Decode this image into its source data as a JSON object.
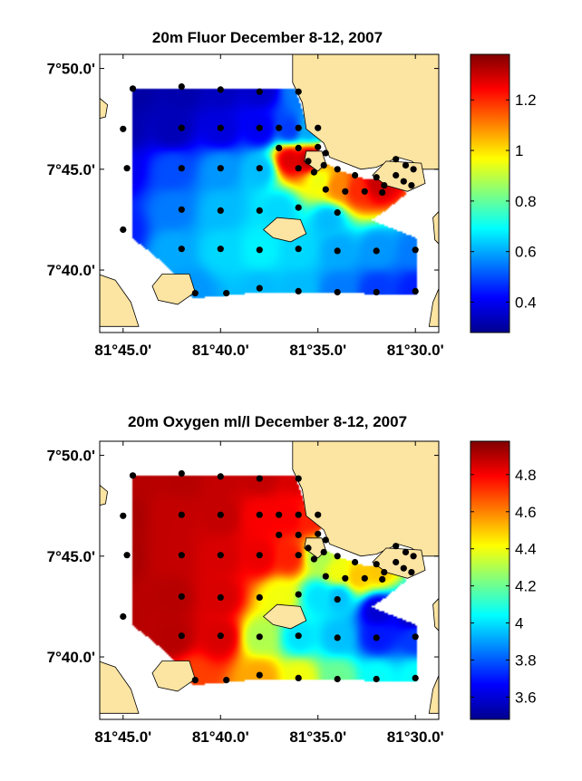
{
  "chart_data": [
    {
      "type": "heatmap",
      "title": "20m Fluor December 8-12, 2007",
      "x_ticks": [
        "81°45.0'",
        "81°40.0'",
        "81°35.0'",
        "81°30.0'"
      ],
      "y_ticks": [
        "7°50.0'",
        "7°45.0'",
        "7°40.0'"
      ],
      "xlim_min_west": [
        46.2,
        28.8
      ],
      "ylim_min_north": [
        36.9,
        50.7
      ],
      "colorbar": {
        "range": [
          0.28,
          1.38
        ],
        "ticks": [
          0.4,
          0.6,
          0.8,
          1,
          1.2
        ],
        "tick_labels": [
          "0.4",
          "0.6",
          "0.8",
          "1",
          "1.2"
        ]
      },
      "field": [
        {
          "lon": 44.5,
          "lat": 49.0,
          "v": 0.32
        },
        {
          "lon": 42.0,
          "lat": 49.0,
          "v": 0.33
        },
        {
          "lon": 40.0,
          "lat": 49.0,
          "v": 0.35
        },
        {
          "lon": 38.0,
          "lat": 49.0,
          "v": 0.36
        },
        {
          "lon": 36.0,
          "lat": 49.0,
          "v": 0.55
        },
        {
          "lon": 45.0,
          "lat": 47.0,
          "v": 0.33
        },
        {
          "lon": 42.5,
          "lat": 47.0,
          "v": 0.34
        },
        {
          "lon": 40.0,
          "lat": 47.0,
          "v": 0.38
        },
        {
          "lon": 38.0,
          "lat": 47.0,
          "v": 0.4
        },
        {
          "lon": 36.5,
          "lat": 47.0,
          "v": 0.48
        },
        {
          "lon": 35.5,
          "lat": 47.0,
          "v": 0.6
        },
        {
          "lon": 45.0,
          "lat": 45.0,
          "v": 0.4
        },
        {
          "lon": 42.5,
          "lat": 45.0,
          "v": 0.5
        },
        {
          "lon": 40.0,
          "lat": 45.0,
          "v": 0.58
        },
        {
          "lon": 38.0,
          "lat": 45.0,
          "v": 0.62
        },
        {
          "lon": 36.5,
          "lat": 45.5,
          "v": 1.28
        },
        {
          "lon": 35.5,
          "lat": 45.5,
          "v": 1.32
        },
        {
          "lon": 35.0,
          "lat": 44.5,
          "v": 0.95
        },
        {
          "lon": 34.0,
          "lat": 44.2,
          "v": 1.1
        },
        {
          "lon": 33.0,
          "lat": 44.0,
          "v": 1.2
        },
        {
          "lon": 32.0,
          "lat": 44.3,
          "v": 1.3
        },
        {
          "lon": 45.0,
          "lat": 42.0,
          "v": 0.45
        },
        {
          "lon": 42.5,
          "lat": 43.0,
          "v": 0.55
        },
        {
          "lon": 40.0,
          "lat": 43.0,
          "v": 0.62
        },
        {
          "lon": 37.0,
          "lat": 43.0,
          "v": 0.65
        },
        {
          "lon": 34.5,
          "lat": 42.5,
          "v": 0.62
        },
        {
          "lon": 42.5,
          "lat": 41.0,
          "v": 0.6
        },
        {
          "lon": 40.0,
          "lat": 41.0,
          "v": 0.65
        },
        {
          "lon": 38.0,
          "lat": 41.0,
          "v": 0.68
        },
        {
          "lon": 36.0,
          "lat": 41.0,
          "v": 0.65
        },
        {
          "lon": 34.0,
          "lat": 41.0,
          "v": 0.6
        },
        {
          "lon": 32.0,
          "lat": 41.0,
          "v": 0.58
        },
        {
          "lon": 30.0,
          "lat": 41.0,
          "v": 0.55
        },
        {
          "lon": 41.5,
          "lat": 39.0,
          "v": 0.58
        },
        {
          "lon": 38.0,
          "lat": 39.0,
          "v": 0.62
        },
        {
          "lon": 36.0,
          "lat": 39.0,
          "v": 0.62
        },
        {
          "lon": 34.0,
          "lat": 39.0,
          "v": 0.55
        },
        {
          "lon": 32.0,
          "lat": 39.0,
          "v": 0.48
        },
        {
          "lon": 30.0,
          "lat": 39.0,
          "v": 0.45
        }
      ]
    },
    {
      "type": "heatmap",
      "title": "20m Oxygen ml/l December 8-12, 2007",
      "x_ticks": [
        "81°45.0'",
        "81°40.0'",
        "81°35.0'",
        "81°30.0'"
      ],
      "y_ticks": [
        "7°50.0'",
        "7°45.0'",
        "7°40.0'"
      ],
      "xlim_min_west": [
        46.2,
        28.8
      ],
      "ylim_min_north": [
        36.9,
        50.7
      ],
      "colorbar": {
        "range": [
          3.48,
          4.98
        ],
        "ticks": [
          3.6,
          3.8,
          4,
          4.2,
          4.4,
          4.6,
          4.8
        ],
        "tick_labels": [
          "3.6",
          "3.8",
          "4",
          "4.2",
          "4.4",
          "4.6",
          "4.8"
        ]
      },
      "field": [
        {
          "lon": 44.5,
          "lat": 49.0,
          "v": 4.9
        },
        {
          "lon": 42.0,
          "lat": 49.0,
          "v": 4.9
        },
        {
          "lon": 40.0,
          "lat": 49.0,
          "v": 4.88
        },
        {
          "lon": 38.0,
          "lat": 49.0,
          "v": 4.88
        },
        {
          "lon": 36.0,
          "lat": 49.0,
          "v": 4.85
        },
        {
          "lon": 45.0,
          "lat": 47.0,
          "v": 4.92
        },
        {
          "lon": 42.5,
          "lat": 47.0,
          "v": 4.88
        },
        {
          "lon": 40.0,
          "lat": 47.0,
          "v": 4.88
        },
        {
          "lon": 38.0,
          "lat": 47.0,
          "v": 4.8
        },
        {
          "lon": 36.5,
          "lat": 47.0,
          "v": 4.8
        },
        {
          "lon": 35.5,
          "lat": 47.0,
          "v": 4.75
        },
        {
          "lon": 45.0,
          "lat": 45.0,
          "v": 4.92
        },
        {
          "lon": 42.5,
          "lat": 45.0,
          "v": 4.88
        },
        {
          "lon": 40.0,
          "lat": 45.0,
          "v": 4.85
        },
        {
          "lon": 38.0,
          "lat": 45.0,
          "v": 4.82
        },
        {
          "lon": 36.5,
          "lat": 45.0,
          "v": 4.75
        },
        {
          "lon": 35.0,
          "lat": 45.0,
          "v": 4.3
        },
        {
          "lon": 34.0,
          "lat": 44.2,
          "v": 4.4
        },
        {
          "lon": 33.0,
          "lat": 44.0,
          "v": 4.5
        },
        {
          "lon": 32.0,
          "lat": 44.3,
          "v": 4.5
        },
        {
          "lon": 45.0,
          "lat": 42.0,
          "v": 4.9
        },
        {
          "lon": 42.5,
          "lat": 43.0,
          "v": 4.9
        },
        {
          "lon": 40.0,
          "lat": 43.0,
          "v": 4.85
        },
        {
          "lon": 37.0,
          "lat": 43.0,
          "v": 4.4
        },
        {
          "lon": 35.0,
          "lat": 43.0,
          "v": 4.0
        },
        {
          "lon": 34.0,
          "lat": 43.0,
          "v": 3.95
        },
        {
          "lon": 32.0,
          "lat": 42.3,
          "v": 3.6
        },
        {
          "lon": 30.0,
          "lat": 42.0,
          "v": 3.55
        },
        {
          "lon": 42.5,
          "lat": 41.0,
          "v": 4.9
        },
        {
          "lon": 40.0,
          "lat": 41.0,
          "v": 4.85
        },
        {
          "lon": 38.0,
          "lat": 41.0,
          "v": 4.3
        },
        {
          "lon": 36.0,
          "lat": 41.0,
          "v": 4.0
        },
        {
          "lon": 34.0,
          "lat": 41.0,
          "v": 3.95
        },
        {
          "lon": 32.0,
          "lat": 41.0,
          "v": 3.7
        },
        {
          "lon": 30.0,
          "lat": 41.0,
          "v": 3.75
        },
        {
          "lon": 41.5,
          "lat": 39.0,
          "v": 4.7
        },
        {
          "lon": 38.0,
          "lat": 39.0,
          "v": 4.55
        },
        {
          "lon": 36.0,
          "lat": 39.0,
          "v": 4.4
        },
        {
          "lon": 34.0,
          "lat": 39.0,
          "v": 4.2
        },
        {
          "lon": 32.0,
          "lat": 39.0,
          "v": 4.05
        },
        {
          "lon": 30.0,
          "lat": 39.0,
          "v": 4.05
        }
      ]
    }
  ],
  "stations": [
    {
      "lon": 44.5,
      "lat": 49.0
    },
    {
      "lon": 42.0,
      "lat": 49.1
    },
    {
      "lon": 40.0,
      "lat": 48.95
    },
    {
      "lon": 38.0,
      "lat": 48.85
    },
    {
      "lon": 36.0,
      "lat": 48.85
    },
    {
      "lon": 45.0,
      "lat": 47.0
    },
    {
      "lon": 42.0,
      "lat": 47.05
    },
    {
      "lon": 40.0,
      "lat": 47.05
    },
    {
      "lon": 38.0,
      "lat": 47.05
    },
    {
      "lon": 37.0,
      "lat": 47.05
    },
    {
      "lon": 36.0,
      "lat": 47.05
    },
    {
      "lon": 35.0,
      "lat": 47.05
    },
    {
      "lon": 36.0,
      "lat": 46.05
    },
    {
      "lon": 35.0,
      "lat": 46.1
    },
    {
      "lon": 37.0,
      "lat": 46.05
    },
    {
      "lon": 34.6,
      "lat": 45.8
    },
    {
      "lon": 35.5,
      "lat": 45.4
    },
    {
      "lon": 34.7,
      "lat": 45.2
    },
    {
      "lon": 35.2,
      "lat": 44.85
    },
    {
      "lon": 36.0,
      "lat": 45.05
    },
    {
      "lon": 44.8,
      "lat": 45.05
    },
    {
      "lon": 42.0,
      "lat": 45.05
    },
    {
      "lon": 40.0,
      "lat": 45.05
    },
    {
      "lon": 38.0,
      "lat": 45.05
    },
    {
      "lon": 34.0,
      "lat": 45.0
    },
    {
      "lon": 33.1,
      "lat": 44.7
    },
    {
      "lon": 32.0,
      "lat": 44.6
    },
    {
      "lon": 31.0,
      "lat": 44.7
    },
    {
      "lon": 31.6,
      "lat": 44.2
    },
    {
      "lon": 30.6,
      "lat": 44.4
    },
    {
      "lon": 30.5,
      "lat": 45.2
    },
    {
      "lon": 30.1,
      "lat": 45.0
    },
    {
      "lon": 31.0,
      "lat": 45.5
    },
    {
      "lon": 30.2,
      "lat": 44.2
    },
    {
      "lon": 34.6,
      "lat": 44.0
    },
    {
      "lon": 33.6,
      "lat": 43.9
    },
    {
      "lon": 32.6,
      "lat": 43.9
    },
    {
      "lon": 31.7,
      "lat": 43.85
    },
    {
      "lon": 45.0,
      "lat": 42.0
    },
    {
      "lon": 42.0,
      "lat": 43.0
    },
    {
      "lon": 40.0,
      "lat": 42.95
    },
    {
      "lon": 38.0,
      "lat": 42.95
    },
    {
      "lon": 36.0,
      "lat": 43.1
    },
    {
      "lon": 34.0,
      "lat": 42.85
    },
    {
      "lon": 42.0,
      "lat": 41.05
    },
    {
      "lon": 40.0,
      "lat": 41.05
    },
    {
      "lon": 38.0,
      "lat": 41.0
    },
    {
      "lon": 36.0,
      "lat": 41.05
    },
    {
      "lon": 34.0,
      "lat": 40.95
    },
    {
      "lon": 32.0,
      "lat": 40.95
    },
    {
      "lon": 30.0,
      "lat": 41.0
    },
    {
      "lon": 41.3,
      "lat": 38.85
    },
    {
      "lon": 39.7,
      "lat": 38.85
    },
    {
      "lon": 38.0,
      "lat": 39.1
    },
    {
      "lon": 36.0,
      "lat": 38.95
    },
    {
      "lon": 34.0,
      "lat": 38.9
    },
    {
      "lon": 32.0,
      "lat": 38.9
    },
    {
      "lon": 30.0,
      "lat": 38.95
    }
  ],
  "colors": {
    "land": "#fce4a2",
    "coast": "#000000",
    "background": "#ffffff"
  }
}
